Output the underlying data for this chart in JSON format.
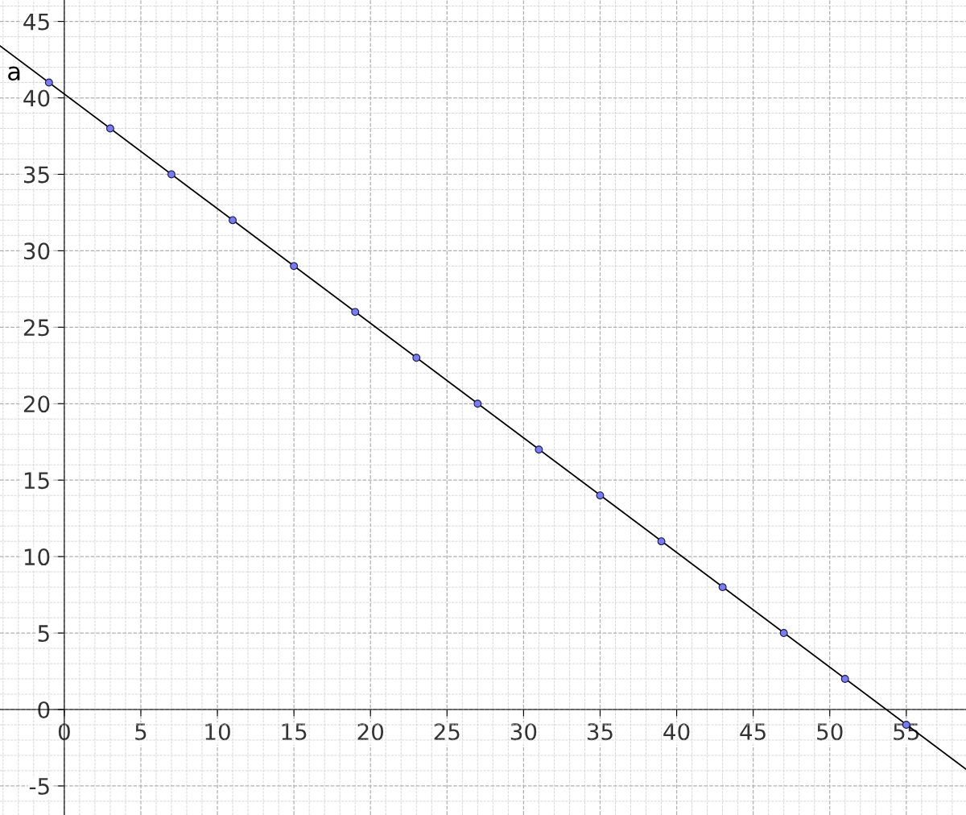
{
  "chart_data": {
    "type": "scatter",
    "xlim": [
      -4.2,
      58.9
    ],
    "ylim": [
      -6.9,
      46.4
    ],
    "xticks": [
      0,
      5,
      10,
      15,
      20,
      25,
      30,
      35,
      40,
      45,
      50,
      55
    ],
    "yticks": [
      -5,
      0,
      5,
      10,
      15,
      20,
      25,
      30,
      35,
      40,
      45
    ],
    "grid": true,
    "series": [
      {
        "marker": "circle",
        "color": "#7b7bf0",
        "x": [
          -1,
          3,
          7,
          11,
          15,
          19,
          23,
          27,
          31,
          35,
          39,
          43,
          47,
          51,
          55
        ],
        "values": [
          41,
          38,
          35,
          32,
          29,
          26,
          23,
          20,
          17,
          14,
          11,
          8,
          5,
          2,
          -1
        ]
      },
      {
        "type": "line",
        "name": "a",
        "color": "#000000",
        "line_style": "solid",
        "x": [
          -4.2,
          58.9
        ],
        "values": [
          43.4,
          -3.9
        ]
      }
    ]
  }
}
